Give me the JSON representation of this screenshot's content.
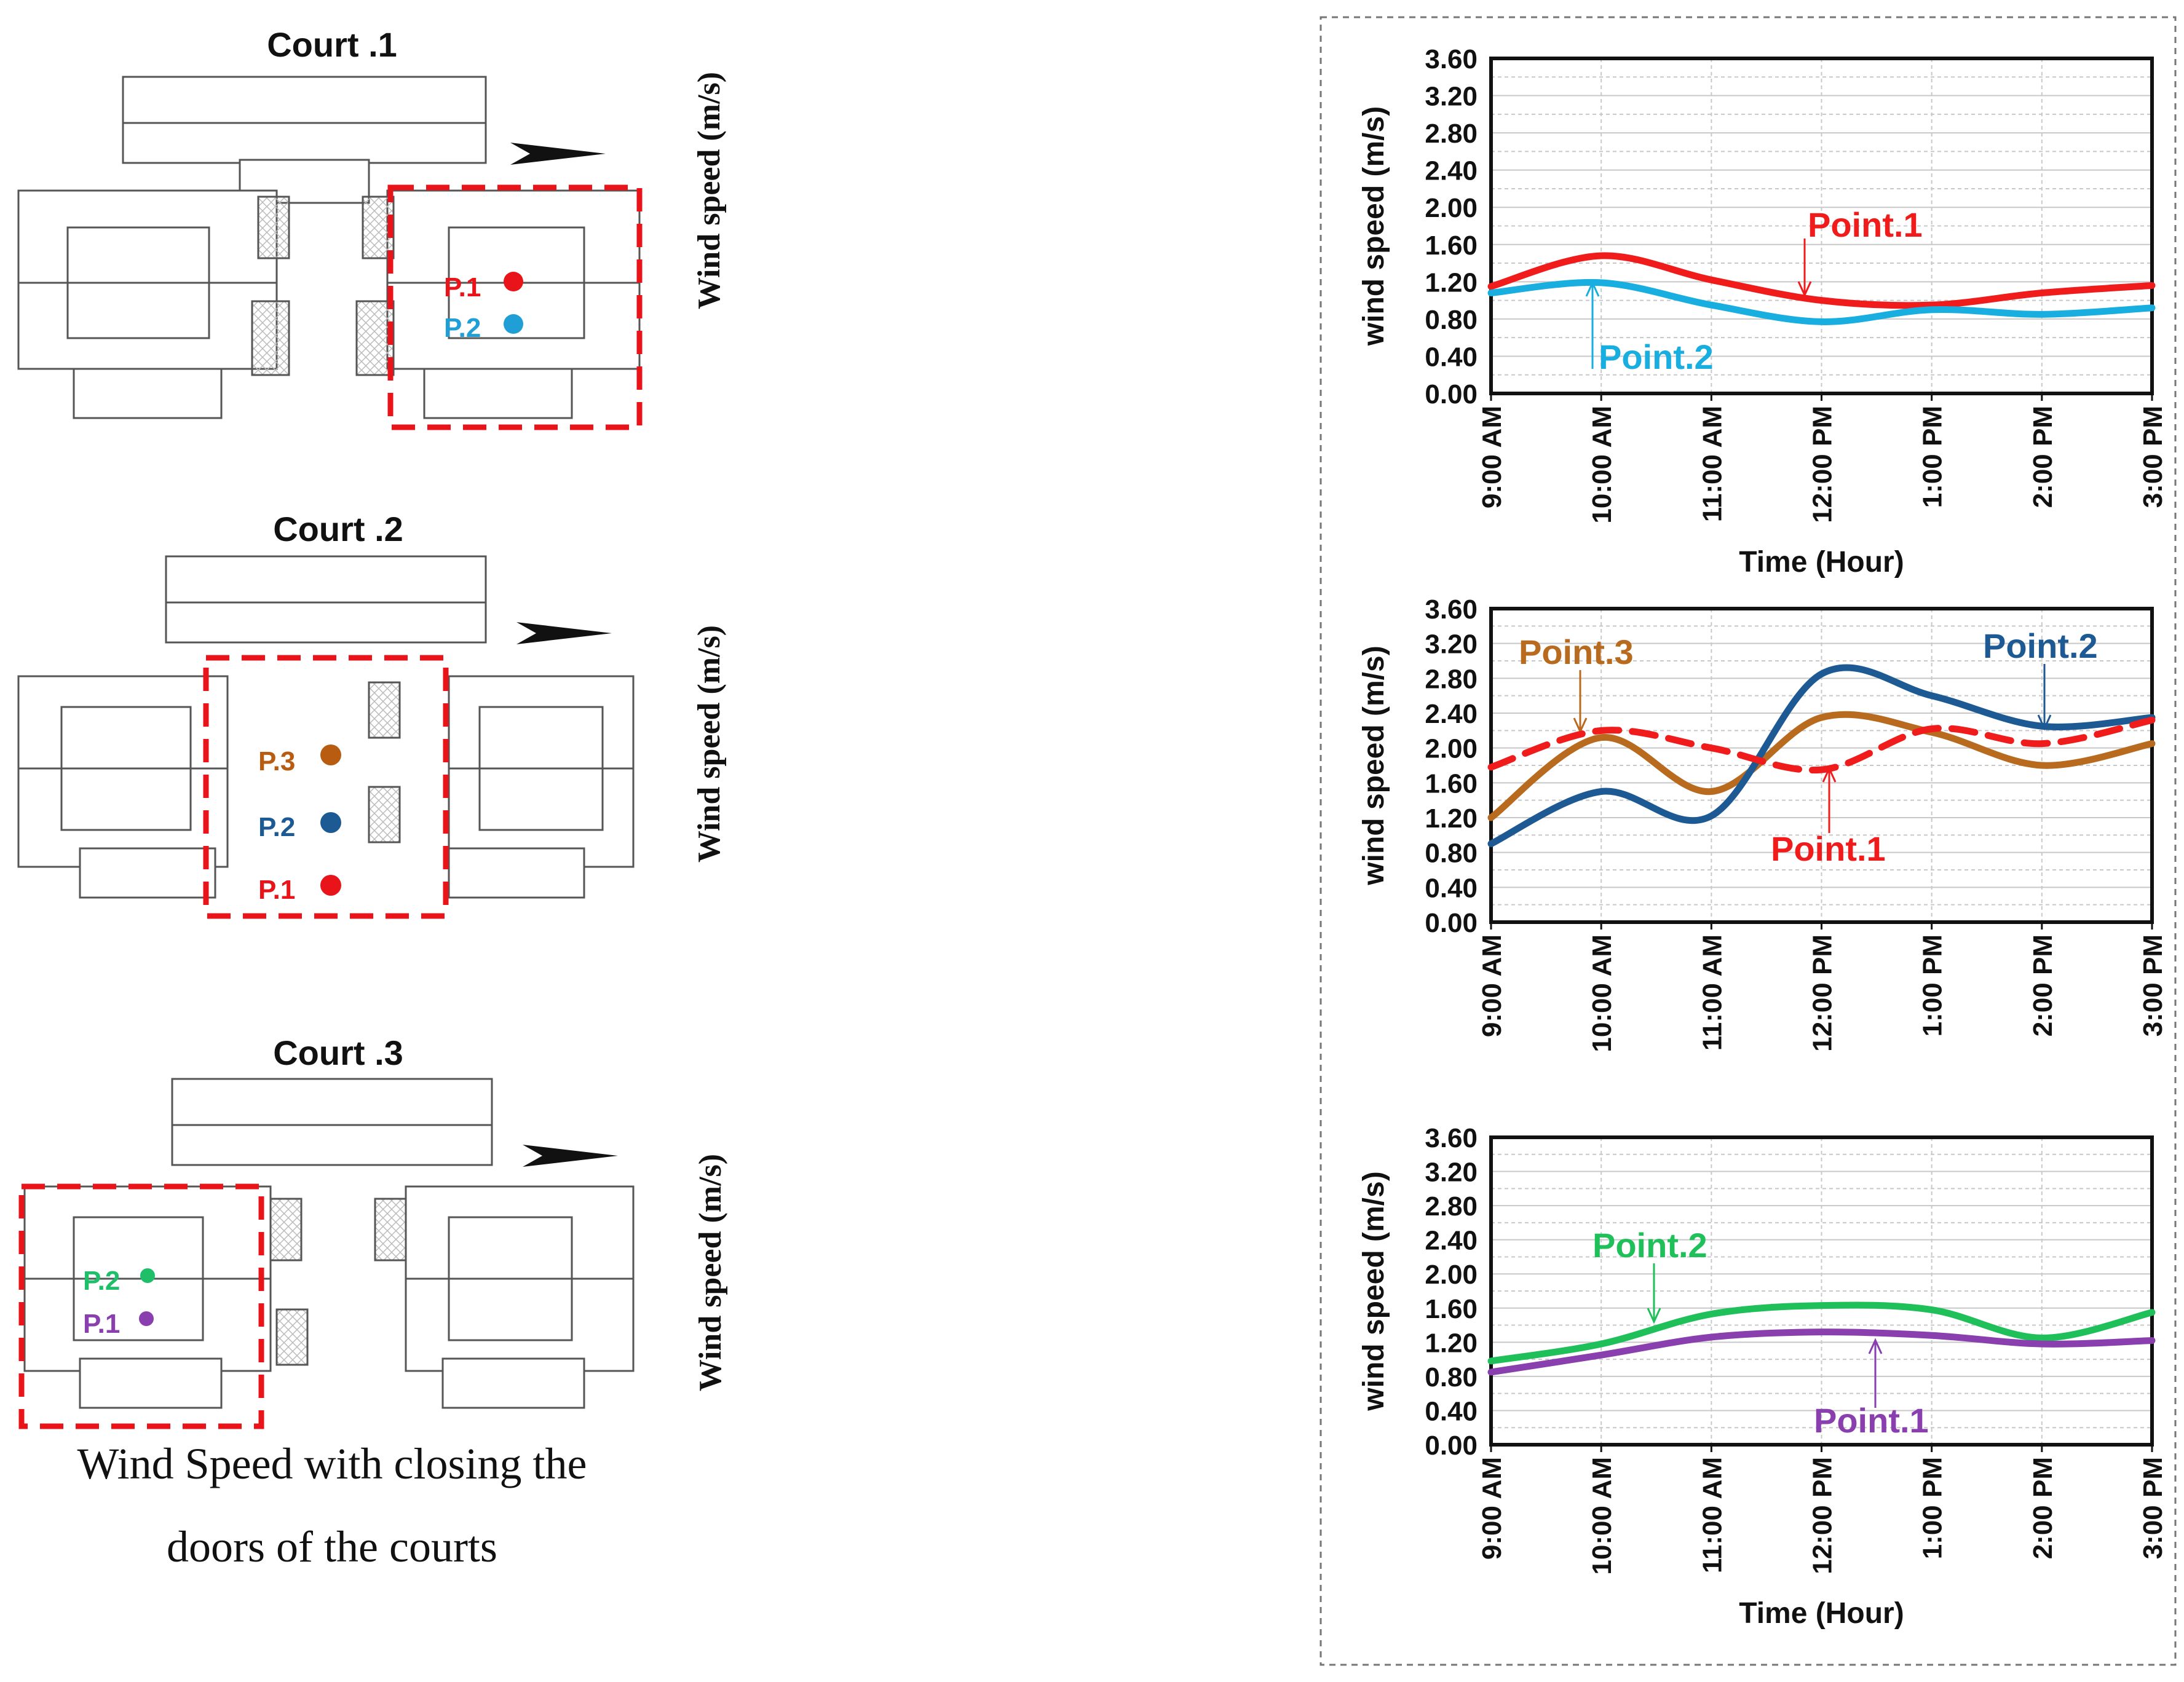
{
  "courts": [
    {
      "title": "Court .1",
      "points": [
        {
          "label": "P.1",
          "color": "#e8141a"
        },
        {
          "label": "P.2",
          "color": "#1f9fd6"
        }
      ]
    },
    {
      "title": "Court .2",
      "points": [
        {
          "label": "P.3",
          "color": "#b85c12"
        },
        {
          "label": "P.2",
          "color": "#1d5a94"
        },
        {
          "label": "P.1",
          "color": "#e8141a"
        }
      ]
    },
    {
      "title": "Court .3",
      "points": [
        {
          "label": "P.2",
          "color": "#1fbf6a"
        },
        {
          "label": "P.1",
          "color": "#8a3fae"
        }
      ]
    }
  ],
  "side_axis_label": "Wind speed (m/s)",
  "caption": {
    "line1": "Wind Speed with closing the",
    "line2": "doors of the courts"
  },
  "icons": {
    "north_arrow": "north-arrow-icon"
  },
  "chart_data": [
    {
      "type": "line",
      "title": "",
      "xlabel": "Time (Hour)",
      "ylabel": "wind speed (m/s)",
      "categories": [
        "9:00 AM",
        "10:00 AM",
        "11:00 AM",
        "12:00 PM",
        "1:00 PM",
        "2:00 PM",
        "3:00 PM"
      ],
      "ylim": [
        0,
        3.6
      ],
      "yticks": [
        "0.00",
        "0.40",
        "0.80",
        "1.20",
        "1.60",
        "2.00",
        "2.40",
        "2.80",
        "3.20",
        "3.60"
      ],
      "grid": true,
      "series": [
        {
          "name": "Point.1",
          "color": "#f01c1c",
          "dashed": false,
          "values": [
            1.15,
            1.48,
            1.22,
            1.0,
            0.95,
            1.08,
            1.16
          ]
        },
        {
          "name": "Point.2",
          "color": "#19aee0",
          "dashed": false,
          "values": [
            1.08,
            1.19,
            0.95,
            0.77,
            0.9,
            0.85,
            0.92
          ]
        }
      ]
    },
    {
      "type": "line",
      "title": "",
      "xlabel": "",
      "ylabel": "wind speed (m/s)",
      "categories": [
        "9:00 AM",
        "10:00 AM",
        "11:00 AM",
        "12:00 PM",
        "1:00 PM",
        "2:00 PM",
        "3:00 PM"
      ],
      "ylim": [
        0,
        3.6
      ],
      "yticks": [
        "0.00",
        "0.40",
        "0.80",
        "1.20",
        "1.60",
        "2.00",
        "2.40",
        "2.80",
        "3.20",
        "3.60"
      ],
      "grid": true,
      "series": [
        {
          "name": "Point.3",
          "color": "#b86a1e",
          "dashed": false,
          "values": [
            1.2,
            2.12,
            1.5,
            2.35,
            2.18,
            1.8,
            2.05
          ]
        },
        {
          "name": "Point.2",
          "color": "#1d5a94",
          "dashed": false,
          "values": [
            0.9,
            1.5,
            1.22,
            2.85,
            2.6,
            2.25,
            2.35
          ]
        },
        {
          "name": "Point.1",
          "color": "#f01c1c",
          "dashed": true,
          "values": [
            1.78,
            2.2,
            2.0,
            1.75,
            2.22,
            2.05,
            2.32
          ]
        }
      ]
    },
    {
      "type": "line",
      "title": "",
      "xlabel": "Time (Hour)",
      "ylabel": "wind speed (m/s)",
      "categories": [
        "9:00 AM",
        "10:00 AM",
        "11:00 AM",
        "12:00 PM",
        "1:00 PM",
        "2:00 PM",
        "3:00 PM"
      ],
      "ylim": [
        0,
        3.6
      ],
      "yticks": [
        "0.00",
        "0.40",
        "0.80",
        "1.20",
        "1.60",
        "2.00",
        "2.40",
        "2.80",
        "3.20",
        "3.60"
      ],
      "grid": true,
      "series": [
        {
          "name": "Point.2",
          "color": "#1fbf5a",
          "dashed": false,
          "values": [
            0.98,
            1.18,
            1.53,
            1.63,
            1.58,
            1.25,
            1.55
          ]
        },
        {
          "name": "Point.1",
          "color": "#8a3fae",
          "dashed": false,
          "values": [
            0.85,
            1.05,
            1.26,
            1.32,
            1.28,
            1.18,
            1.22
          ]
        }
      ]
    }
  ]
}
